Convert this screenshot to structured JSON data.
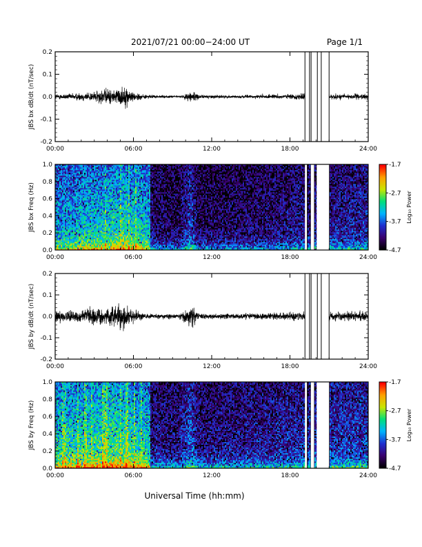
{
  "header": {
    "title": "2021/07/21  00:00−24:00 UT",
    "page": "Page 1/1"
  },
  "xaxis": {
    "label": "Universal Time (hh:mm)",
    "ticks": [
      "00:00",
      "06:00",
      "12:00",
      "18:00",
      "24:00"
    ],
    "range_hours": [
      0,
      24
    ]
  },
  "colorbar": {
    "label": "Log₁₀ Power",
    "ticks": [
      "-1.7",
      "-2.7",
      "-3.7",
      "-4.7"
    ],
    "range": [
      -4.7,
      -1.7
    ],
    "colormap": [
      "#000000",
      "#3b006e",
      "#1f2fd0",
      "#00b4ff",
      "#00e07a",
      "#c8e600",
      "#ffa000",
      "#ff0000"
    ]
  },
  "chart_data": [
    {
      "type": "line",
      "ylabel": "JBS bx dB/dt (nT/sec)",
      "ylim": [
        -0.2,
        0.2
      ],
      "yticks": [
        "-0.2",
        "-0.1",
        "0.0",
        "0.1",
        "0.2"
      ],
      "activity": [
        {
          "h": 0.0,
          "amp": 0.012
        },
        {
          "h": 1.0,
          "amp": 0.012
        },
        {
          "h": 2.0,
          "amp": 0.018
        },
        {
          "h": 3.0,
          "amp": 0.022
        },
        {
          "h": 3.8,
          "amp": 0.035
        },
        {
          "h": 4.5,
          "amp": 0.03
        },
        {
          "h": 5.2,
          "amp": 0.045
        },
        {
          "h": 6.0,
          "amp": 0.02
        },
        {
          "h": 7.0,
          "amp": 0.008
        },
        {
          "h": 8.5,
          "amp": 0.005
        },
        {
          "h": 9.8,
          "amp": 0.006
        },
        {
          "h": 10.5,
          "amp": 0.03
        },
        {
          "h": 11.0,
          "amp": 0.008
        },
        {
          "h": 14.0,
          "amp": 0.006
        },
        {
          "h": 16.0,
          "amp": 0.008
        },
        {
          "h": 18.0,
          "amp": 0.01
        },
        {
          "h": 19.0,
          "amp": 0.015
        },
        {
          "h": 21.0,
          "amp": 0.012
        },
        {
          "h": 24.0,
          "amp": 0.012
        }
      ],
      "gaps": [
        [
          19.15,
          19.5
        ],
        [
          19.5,
          20.1
        ],
        [
          20.1,
          20.4
        ],
        [
          20.4,
          21.0
        ]
      ],
      "gap_lines": [
        19.15,
        19.5,
        19.62,
        20.1,
        20.4,
        21.0
      ]
    },
    {
      "type": "heatmap",
      "ylabel": "JBS bx Freq (Hz)",
      "ylim": [
        0,
        1.0
      ],
      "yticks": [
        "0.0",
        "0.2",
        "0.4",
        "0.6",
        "0.8",
        "1.0"
      ],
      "blank_intervals": [
        [
          19.15,
          19.3
        ],
        [
          19.6,
          19.85
        ],
        [
          20.05,
          21.0
        ]
      ],
      "activity": [
        {
          "h": 0.0,
          "level": 0.45
        },
        {
          "h": 2.0,
          "level": 0.5
        },
        {
          "h": 4.0,
          "level": 0.55
        },
        {
          "h": 5.5,
          "level": 0.58
        },
        {
          "h": 7.2,
          "level": 0.5
        },
        {
          "h": 7.3,
          "level": 0.15
        },
        {
          "h": 9.5,
          "level": 0.12
        },
        {
          "h": 10.4,
          "level": 0.3
        },
        {
          "h": 11.0,
          "level": 0.12
        },
        {
          "h": 16.0,
          "level": 0.15
        },
        {
          "h": 19.0,
          "level": 0.2
        },
        {
          "h": 21.0,
          "level": 0.2
        },
        {
          "h": 24.0,
          "level": 0.25
        }
      ]
    },
    {
      "type": "line",
      "ylabel": "JBS by dB/dt (nT/sec)",
      "ylim": [
        -0.2,
        0.2
      ],
      "yticks": [
        "-0.2",
        "-0.1",
        "0.0",
        "0.1",
        "0.2"
      ],
      "activity": [
        {
          "h": 0.0,
          "amp": 0.025
        },
        {
          "h": 1.0,
          "amp": 0.022
        },
        {
          "h": 2.0,
          "amp": 0.025
        },
        {
          "h": 3.0,
          "amp": 0.04
        },
        {
          "h": 4.0,
          "amp": 0.035
        },
        {
          "h": 5.2,
          "amp": 0.06
        },
        {
          "h": 6.0,
          "amp": 0.03
        },
        {
          "h": 7.0,
          "amp": 0.012
        },
        {
          "h": 9.5,
          "amp": 0.01
        },
        {
          "h": 10.5,
          "amp": 0.05
        },
        {
          "h": 11.0,
          "amp": 0.012
        },
        {
          "h": 14.0,
          "amp": 0.012
        },
        {
          "h": 16.0,
          "amp": 0.015
        },
        {
          "h": 19.0,
          "amp": 0.02
        },
        {
          "h": 21.0,
          "amp": 0.02
        },
        {
          "h": 24.0,
          "amp": 0.022
        }
      ],
      "gaps": [
        [
          19.15,
          21.0
        ]
      ],
      "gap_lines": [
        19.15,
        19.5,
        19.62,
        20.1,
        20.4,
        21.0
      ]
    },
    {
      "type": "heatmap",
      "ylabel": "JBS by Freq (Hz)",
      "ylim": [
        0,
        1.0
      ],
      "yticks": [
        "0.0",
        "0.2",
        "0.4",
        "0.6",
        "0.8",
        "1.0"
      ],
      "blank_intervals": [
        [
          19.15,
          19.3
        ],
        [
          19.6,
          19.85
        ],
        [
          20.05,
          21.0
        ]
      ],
      "activity": [
        {
          "h": 0.0,
          "level": 0.55
        },
        {
          "h": 2.0,
          "level": 0.58
        },
        {
          "h": 4.0,
          "level": 0.62
        },
        {
          "h": 5.5,
          "level": 0.62
        },
        {
          "h": 7.2,
          "level": 0.55
        },
        {
          "h": 7.3,
          "level": 0.2
        },
        {
          "h": 9.5,
          "level": 0.18
        },
        {
          "h": 10.4,
          "level": 0.35
        },
        {
          "h": 11.0,
          "level": 0.18
        },
        {
          "h": 16.0,
          "level": 0.22
        },
        {
          "h": 19.0,
          "level": 0.25
        },
        {
          "h": 21.0,
          "level": 0.28
        },
        {
          "h": 24.0,
          "level": 0.3
        }
      ]
    }
  ]
}
